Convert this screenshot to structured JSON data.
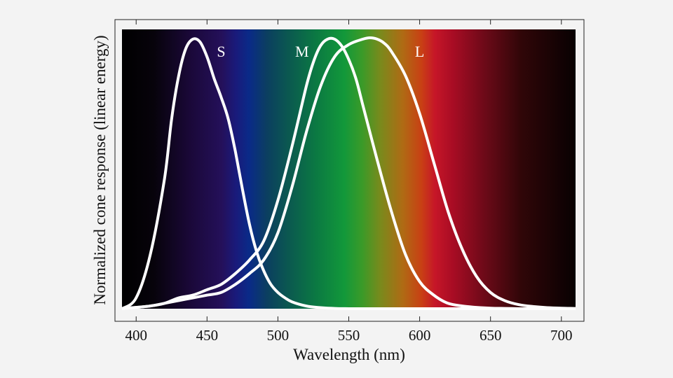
{
  "chart_data": {
    "type": "line",
    "title": "",
    "xlabel": "Wavelength (nm)",
    "ylabel": "Normalized cone response (linear energy)",
    "xlim": [
      385,
      710
    ],
    "ylim": [
      0,
      1
    ],
    "xticks": [
      400,
      450,
      500,
      550,
      600,
      650,
      700
    ],
    "yticks": [],
    "grid": false,
    "legend": "none",
    "background": "visible spectrum gradient",
    "line_color": "#ffffff",
    "series": [
      {
        "name": "S",
        "label_at": [
          460,
          0.93
        ],
        "x": [
          390,
          400,
          410,
          420,
          425,
          430,
          435,
          440,
          445,
          450,
          455,
          460,
          465,
          470,
          475,
          480,
          485,
          490,
          495,
          500,
          505,
          510,
          520,
          530,
          540,
          550,
          560,
          570,
          580,
          590,
          600,
          610,
          620,
          630,
          640,
          650,
          660,
          670,
          680,
          690,
          700,
          710
        ],
        "y": [
          0.0,
          0.04,
          0.2,
          0.48,
          0.7,
          0.86,
          0.96,
          0.995,
          0.985,
          0.93,
          0.85,
          0.78,
          0.7,
          0.58,
          0.44,
          0.31,
          0.21,
          0.14,
          0.09,
          0.06,
          0.04,
          0.025,
          0.01,
          0.004,
          0.001,
          0,
          0,
          0,
          0,
          0,
          0,
          0,
          0,
          0,
          0,
          0,
          0,
          0,
          0,
          0,
          0,
          0
        ]
      },
      {
        "name": "M",
        "label_at": [
          517,
          0.93
        ],
        "x": [
          390,
          400,
          410,
          420,
          430,
          440,
          450,
          460,
          470,
          480,
          490,
          500,
          510,
          520,
          525,
          530,
          535,
          540,
          545,
          550,
          555,
          560,
          570,
          580,
          590,
          600,
          610,
          620,
          630,
          640,
          650,
          660,
          670,
          680,
          690,
          700,
          710
        ],
        "y": [
          0.0,
          0.005,
          0.01,
          0.02,
          0.04,
          0.05,
          0.07,
          0.09,
          0.13,
          0.18,
          0.25,
          0.4,
          0.6,
          0.82,
          0.91,
          0.97,
          0.995,
          0.995,
          0.97,
          0.92,
          0.85,
          0.75,
          0.55,
          0.36,
          0.2,
          0.1,
          0.05,
          0.02,
          0.01,
          0.005,
          0.002,
          0.001,
          0,
          0,
          0,
          0,
          0
        ]
      },
      {
        "name": "L",
        "label_at": [
          600,
          0.93
        ],
        "x": [
          390,
          400,
          410,
          420,
          430,
          440,
          450,
          460,
          470,
          480,
          490,
          500,
          510,
          520,
          530,
          540,
          550,
          560,
          565,
          570,
          575,
          580,
          590,
          600,
          610,
          620,
          630,
          640,
          650,
          660,
          670,
          680,
          690,
          700,
          710
        ],
        "y": [
          0.0,
          0.005,
          0.01,
          0.02,
          0.03,
          0.04,
          0.05,
          0.06,
          0.09,
          0.13,
          0.18,
          0.28,
          0.45,
          0.65,
          0.82,
          0.93,
          0.975,
          0.995,
          1.0,
          0.995,
          0.98,
          0.95,
          0.86,
          0.72,
          0.54,
          0.36,
          0.22,
          0.12,
          0.06,
          0.03,
          0.015,
          0.008,
          0.004,
          0.002,
          0.001
        ]
      }
    ]
  }
}
